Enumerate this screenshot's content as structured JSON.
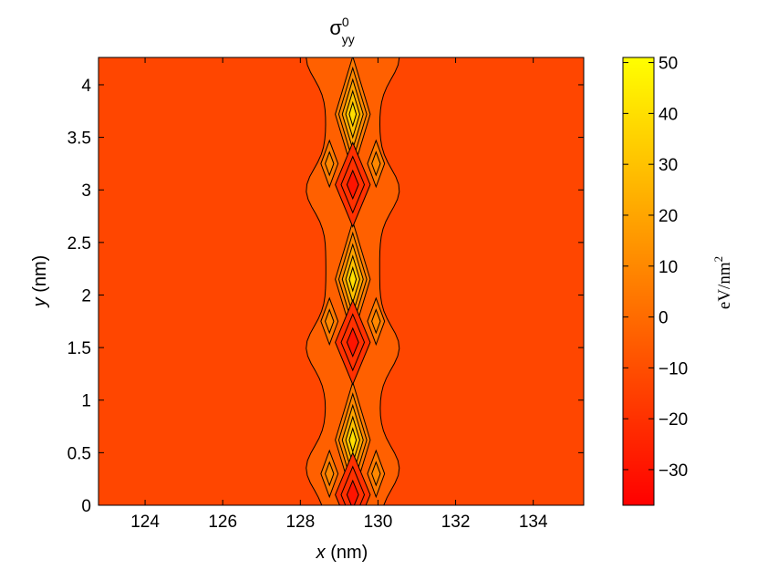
{
  "chart_data": {
    "type": "contour",
    "title": "σ",
    "title_superscript": "0",
    "title_subscript": "yy",
    "xlabel_var": "x",
    "xlabel_unit": " (nm)",
    "ylabel_var": "y",
    "ylabel_unit": " (nm)",
    "xlim": [
      122.8,
      135.3
    ],
    "ylim": [
      0,
      4.26
    ],
    "xticks": [
      124,
      126,
      128,
      130,
      132,
      134
    ],
    "yticks": [
      0,
      0.5,
      1,
      1.5,
      2,
      2.5,
      3,
      3.5,
      4
    ],
    "xtick_labels": [
      "124",
      "126",
      "128",
      "130",
      "132",
      "134"
    ],
    "ytick_labels": [
      "0",
      "0.5",
      "1",
      "1.5",
      "2",
      "2.5",
      "3",
      "3.5",
      "4"
    ],
    "colorbar": {
      "label": "eV/nm",
      "label_superscript": "2",
      "range": [
        -37,
        51
      ],
      "ticks": [
        50,
        40,
        30,
        20,
        10,
        0,
        -10,
        -20,
        -30
      ],
      "tick_labels": [
        "50",
        "40",
        "30",
        "20",
        "10",
        "0",
        "−10",
        "−20",
        "−30"
      ],
      "colormap": "autumn"
    },
    "contour_levels": [
      -30,
      -20,
      -10,
      0,
      10,
      20,
      30,
      40,
      50
    ],
    "background_value": -13,
    "features": [
      {
        "kind": "band",
        "x_center": 129.35,
        "x_halfwidth": 1.2,
        "value": -4
      },
      {
        "kind": "peak",
        "x": 129.35,
        "y": 3.72,
        "value": 45
      },
      {
        "kind": "peak",
        "x": 129.35,
        "y": 2.15,
        "value": 48
      },
      {
        "kind": "peak",
        "x": 129.35,
        "y": 0.62,
        "value": 48
      },
      {
        "kind": "trough",
        "x": 129.35,
        "y": 3.05,
        "value": -34
      },
      {
        "kind": "trough",
        "x": 129.35,
        "y": 1.55,
        "value": -34
      },
      {
        "kind": "trough",
        "x": 129.35,
        "y": 0.1,
        "value": -33
      },
      {
        "kind": "side_lobe",
        "x": 128.75,
        "y": 3.25,
        "value": 14
      },
      {
        "kind": "side_lobe",
        "x": 129.95,
        "y": 3.25,
        "value": 14
      },
      {
        "kind": "side_lobe",
        "x": 128.75,
        "y": 1.75,
        "value": 14
      },
      {
        "kind": "side_lobe",
        "x": 129.95,
        "y": 1.75,
        "value": 14
      },
      {
        "kind": "side_lobe",
        "x": 128.75,
        "y": 0.3,
        "value": 14
      },
      {
        "kind": "side_lobe",
        "x": 129.95,
        "y": 0.3,
        "value": 14
      }
    ],
    "grid": false,
    "legend": "none"
  }
}
